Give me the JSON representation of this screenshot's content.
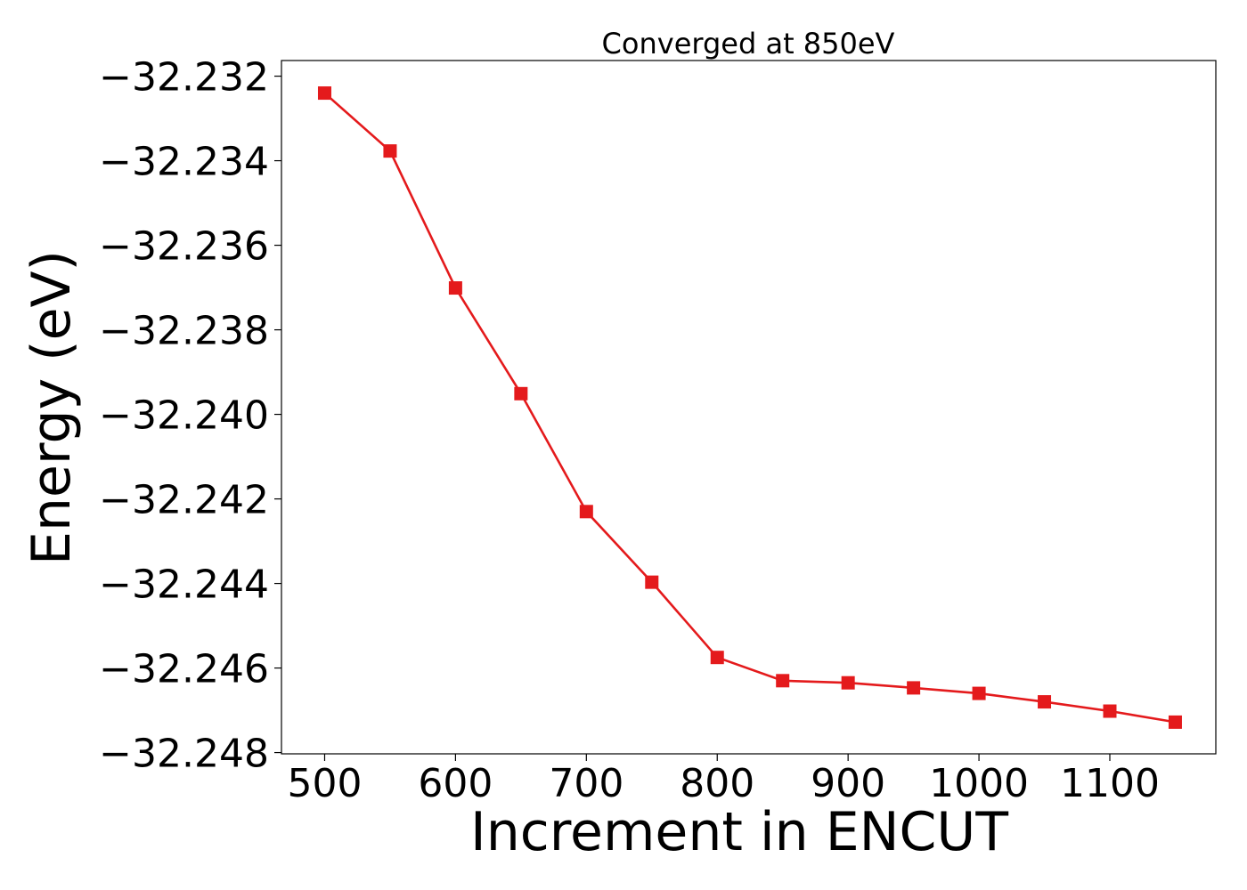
{
  "chart_data": {
    "type": "line",
    "title": "Converged at 850eV",
    "xlabel": "Increment in ENCUT",
    "ylabel": "Energy (eV)",
    "xlim": [
      467,
      1181
    ],
    "ylim": [
      -32.24803,
      -32.23163
    ],
    "x_ticks": [
      500,
      600,
      700,
      800,
      900,
      1000,
      1100
    ],
    "y_ticks": [
      -32.232,
      -32.234,
      -32.236,
      -32.238,
      -32.24,
      -32.242,
      -32.244,
      -32.246,
      -32.248
    ],
    "y_tick_labels": [
      "−32.232",
      "−32.234",
      "−32.236",
      "−32.238",
      "−32.240",
      "−32.242",
      "−32.244",
      "−32.246",
      "−32.248"
    ],
    "grid": false,
    "series": [
      {
        "color": "#e41a1c",
        "marker": "square",
        "x": [
          500,
          550,
          600,
          650,
          700,
          750,
          800,
          850,
          900,
          950,
          1000,
          1050,
          1100,
          1150
        ],
        "y": [
          -32.2324,
          -32.23377,
          -32.23701,
          -32.23951,
          -32.2423,
          -32.24397,
          -32.24575,
          -32.2463,
          -32.24635,
          -32.24647,
          -32.2466,
          -32.2468,
          -32.24702,
          -32.24728
        ]
      }
    ]
  }
}
